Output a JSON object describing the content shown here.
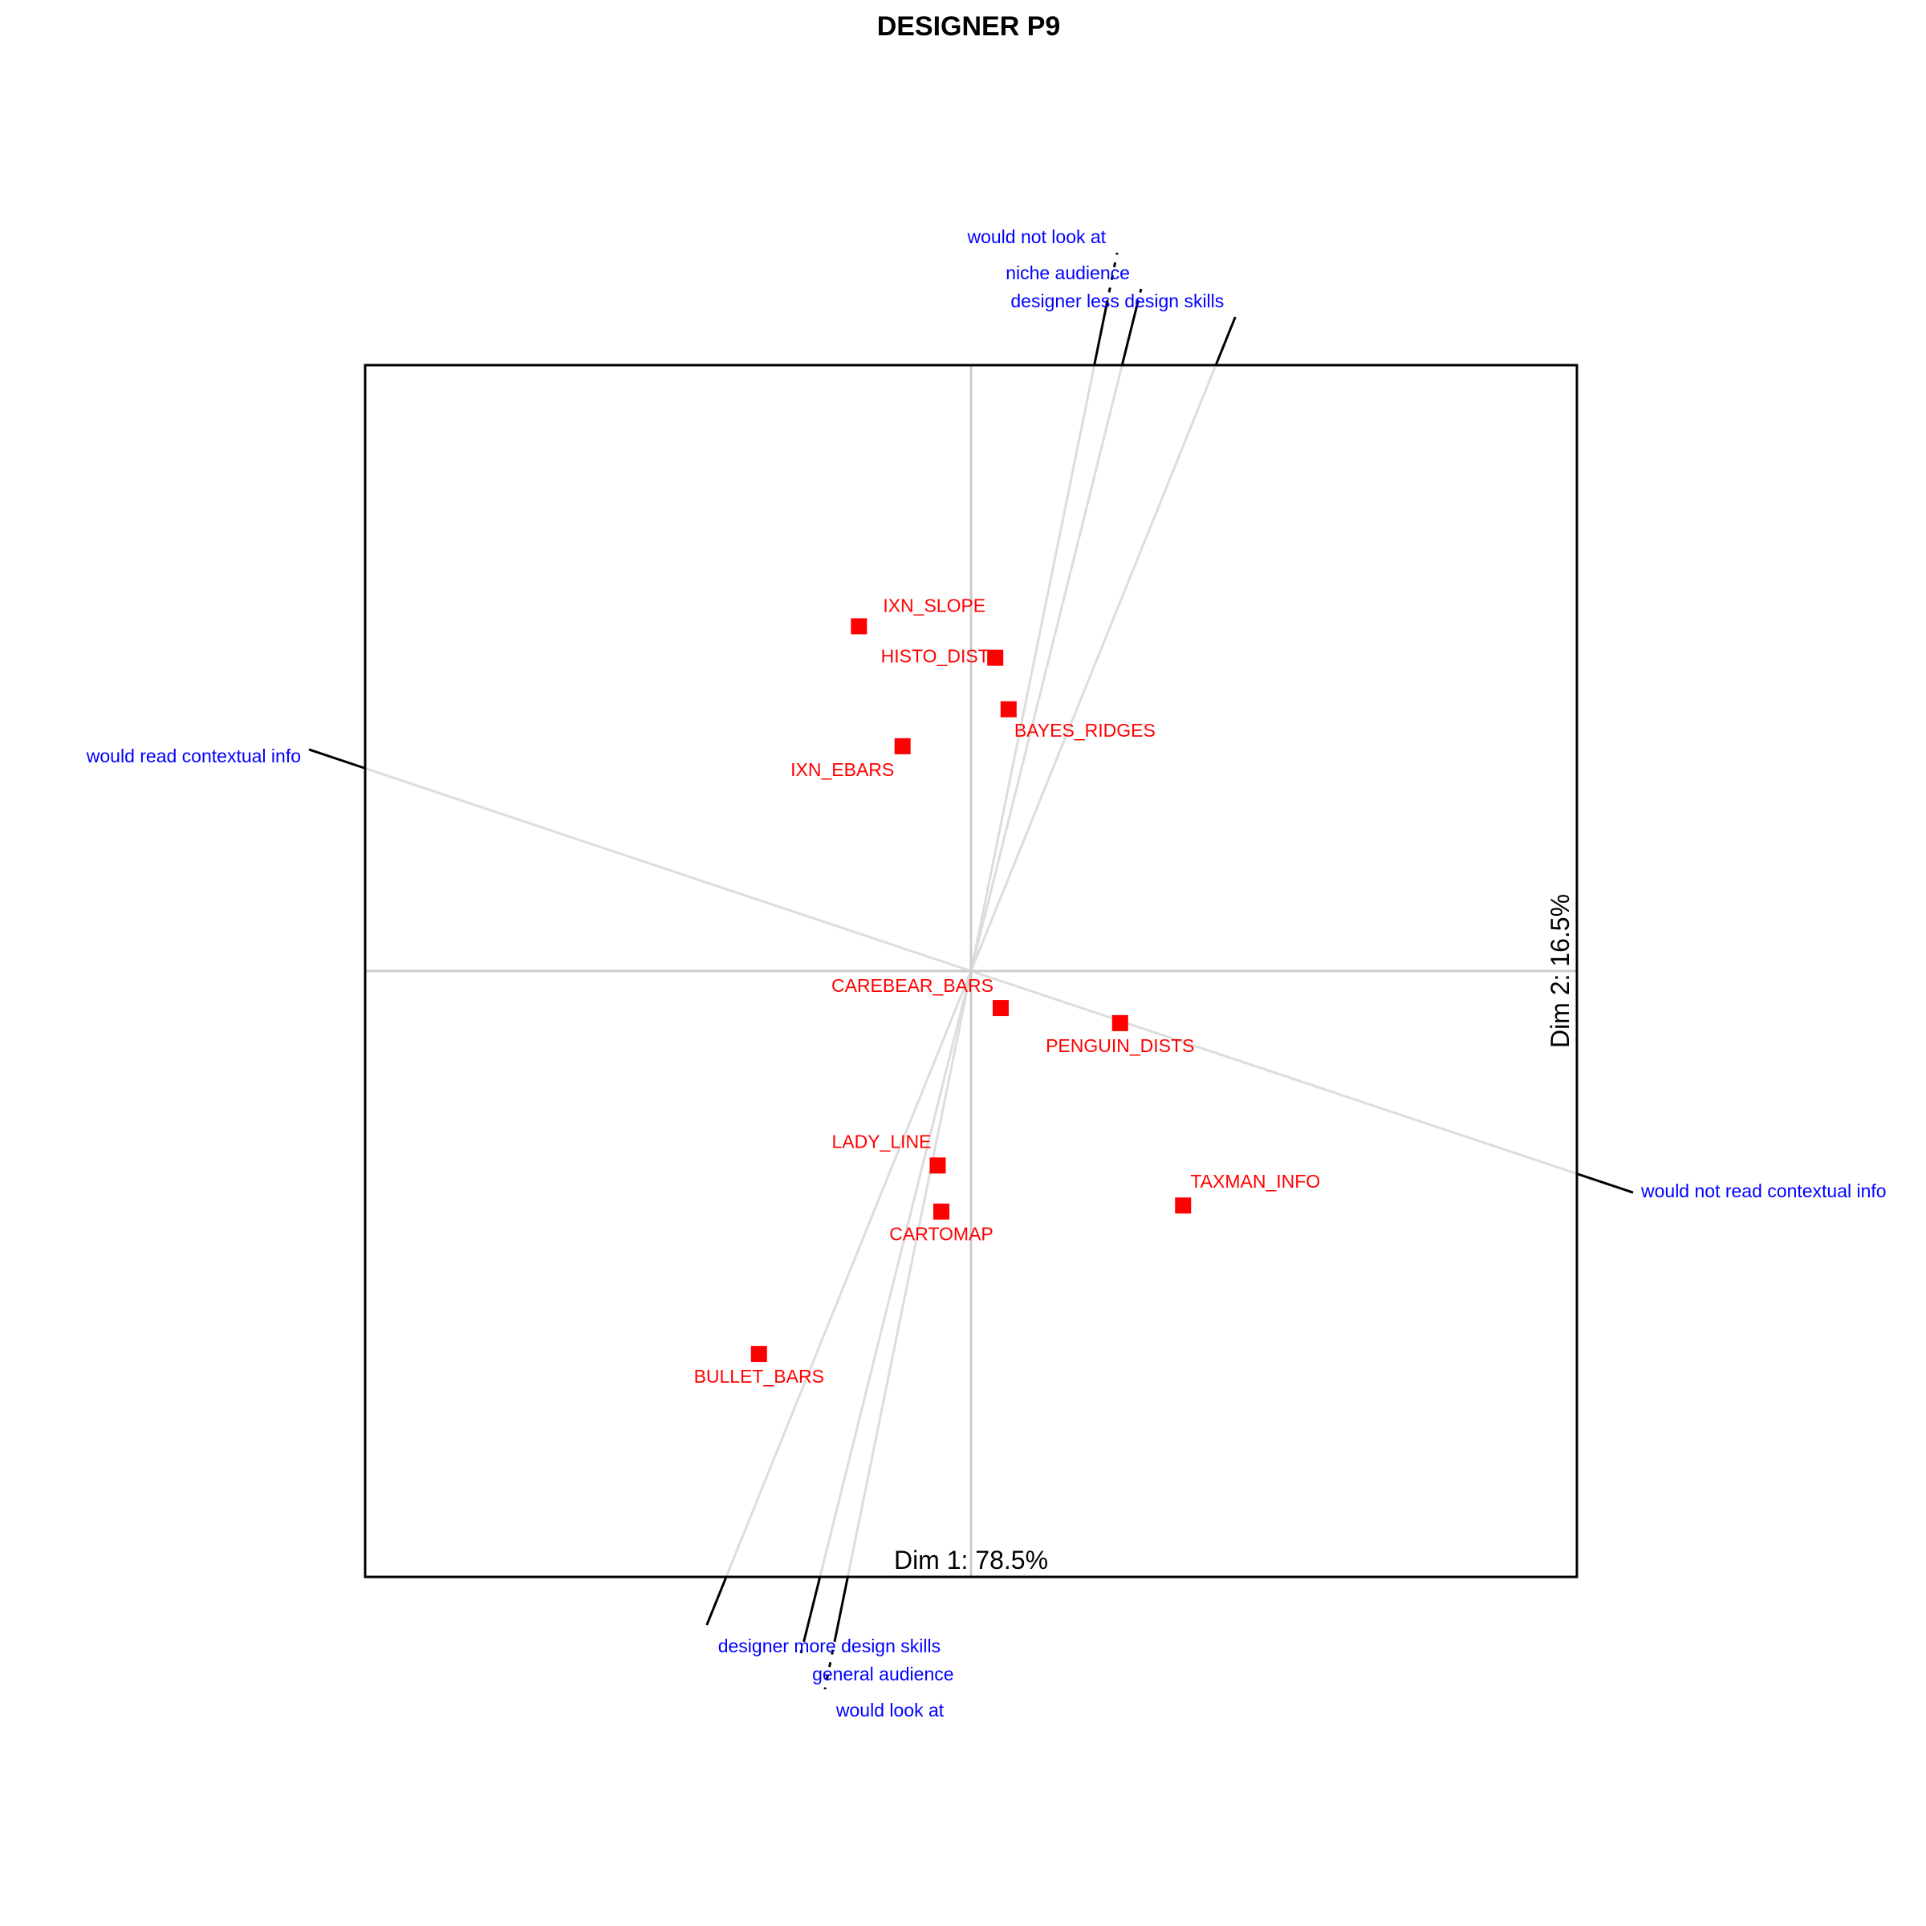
{
  "chart_data": {
    "type": "scatter",
    "title": "DESIGNER P9",
    "xlabel": "Dim 1: 78.5%",
    "ylabel": "Dim 2: 16.5%",
    "xlim": [
      -1,
      1
    ],
    "ylim": [
      -1,
      1
    ],
    "grid": false,
    "colors": {
      "points": "#ff0000",
      "point_labels": "#ff0000",
      "construct_labels": "#0000ff",
      "construct_lines": "#dddddd",
      "frame": "#000000",
      "center_axes": "#cccccc"
    },
    "points": [
      {
        "label": "IXN_SLOPE",
        "x": -0.185,
        "y": 0.569
      },
      {
        "label": "HISTO_DIST",
        "x": 0.04,
        "y": 0.517
      },
      {
        "label": "BAYES_RIDGES",
        "x": 0.062,
        "y": 0.432
      },
      {
        "label": "IXN_EBARS",
        "x": -0.113,
        "y": 0.371
      },
      {
        "label": "CAREBEAR_BARS",
        "x": 0.049,
        "y": -0.061
      },
      {
        "label": "PENGUIN_DISTS",
        "x": 0.246,
        "y": -0.086
      },
      {
        "label": "LADY_LINE",
        "x": -0.055,
        "y": -0.321
      },
      {
        "label": "CARTOMAP",
        "x": -0.049,
        "y": -0.397
      },
      {
        "label": "TAXMAN_INFO",
        "x": 0.35,
        "y": -0.387
      },
      {
        "label": "BULLET_BARS",
        "x": -0.35,
        "y": -0.632
      }
    ],
    "constructs": [
      {
        "left": "designer less design skills",
        "right": "designer more design skills",
        "angle": 112
      },
      {
        "left": "niche audience",
        "right": "general audience",
        "angle": 104
      },
      {
        "left": "would not look at",
        "right": "would look at",
        "angle": 101.5
      },
      {
        "left": "would read contextual info",
        "right": "would not read contextual info",
        "angle": 18.5
      }
    ]
  }
}
